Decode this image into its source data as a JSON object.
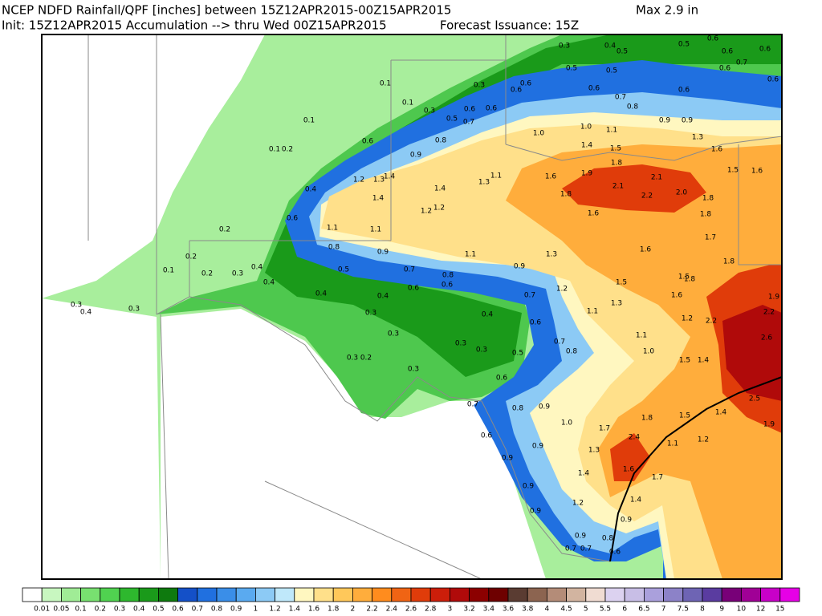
{
  "header": {
    "title": "NCEP NDFD Rainfall/QPF [inches] between 15Z12APR2015-00Z15APR2015",
    "max": "Max   2.9 in",
    "init": "Init: 15Z12APR2015 Accumulation --> thru Wed 00Z15APR2015",
    "issuance": "Forecast Issuance: 15Z"
  },
  "legend": {
    "colors": [
      "#ffffff",
      "#c8f7c0",
      "#a0ec96",
      "#78e070",
      "#50d250",
      "#2eb82e",
      "#1a9a1a",
      "#0e7a0e",
      "#1450c8",
      "#2070e0",
      "#3a8ee8",
      "#5aaaf0",
      "#8ccaf5",
      "#bfe8fa",
      "#fff7c0",
      "#ffe08a",
      "#ffc85a",
      "#ffad3c",
      "#ff8c1e",
      "#f06414",
      "#e03c0a",
      "#cc1e0a",
      "#b00a0a",
      "#8c0000",
      "#6e0000",
      "#5a3c32",
      "#8c6450",
      "#b48c78",
      "#d2b4a0",
      "#f0dcd2",
      "#dcd2f0",
      "#c8bee6",
      "#aaa0dc",
      "#8c82c8",
      "#6e64b4",
      "#5a3ca0",
      "#780078",
      "#a00096",
      "#c800c8",
      "#e600e6"
    ],
    "labels": [
      "0.01",
      "0.05",
      "0.1",
      "0.2",
      "0.3",
      "0.4",
      "0.5",
      "0.6",
      "0.7",
      "0.8",
      "0.9",
      "1",
      "1.2",
      "1.4",
      "1.6",
      "1.8",
      "2",
      "2.2",
      "2.4",
      "2.6",
      "2.8",
      "3",
      "3.2",
      "3.4",
      "3.6",
      "3.8",
      "4",
      "4.5",
      "5",
      "5.5",
      "6",
      "6.5",
      "7",
      "7.5",
      "8",
      "9",
      "10",
      "12",
      "15"
    ]
  },
  "map": {
    "labels": [
      "0.3",
      "0.4",
      "0.5",
      "0.6",
      "0.6",
      "0.5",
      "0.6",
      "0.7",
      "0.5",
      "0.6",
      "0.6",
      "0.1",
      "0.1",
      "0.3",
      "0.3",
      "0.5",
      "0.6",
      "0.6",
      "0.7",
      "0.6",
      "0.6",
      "0.5",
      "0.6",
      "0.7",
      "0.6",
      "0.8",
      "0.9",
      "0.9",
      "0.1",
      "0.1",
      "0.2",
      "0.6",
      "0.8",
      "0.9",
      "1.0",
      "1.1",
      "1.0",
      "1.4",
      "1.5",
      "1.3",
      "1.6",
      "1.8",
      "1.9",
      "2.1",
      "2.1",
      "2.2",
      "2.0",
      "1.8",
      "1.5",
      "1.6",
      "1.1",
      "1.3",
      "1.4",
      "1.2",
      "1.3",
      "1.4",
      "1.4",
      "1.2",
      "1.2",
      "1.6",
      "1.8",
      "1.6",
      "1.8",
      "0.4",
      "0.6",
      "1.1",
      "1.1",
      "0.2",
      "0.2",
      "0.1",
      "0.2",
      "0.3",
      "0.4",
      "0.4",
      "0.8",
      "0.9",
      "1.1",
      "1.3",
      "0.5",
      "0.7",
      "0.8",
      "0.9",
      "0.6",
      "0.6",
      "0.4",
      "0.4",
      "0.3",
      "0.3",
      "0.3",
      "0.2",
      "0.3",
      "0.3",
      "0.4",
      "0.5",
      "0.3",
      "0.6",
      "0.7",
      "0.6",
      "0.7",
      "0.8",
      "1.2",
      "1.1",
      "1.3",
      "1.5",
      "1.6",
      "1.5",
      "1.6",
      "1.8",
      "1.7",
      "1.8",
      "1.9",
      "2.2",
      "2.2",
      "2.6",
      "1.2",
      "1.0",
      "1.1",
      "1.5",
      "1.4",
      "0.3",
      "0.4",
      "0.3",
      "0.7",
      "0.6",
      "0.9",
      "0.9",
      "0.8",
      "0.9",
      "1.0",
      "1.3",
      "1.4",
      "1.7",
      "2.4",
      "1.6",
      "1.7",
      "1.8",
      "1.1",
      "1.2",
      "1.4",
      "1.5",
      "1.9",
      "2.5",
      "1.2",
      "1.4",
      "0.9",
      "0.9",
      "0.9",
      "0.9",
      "0.7",
      "0.7",
      "0.6",
      "0.8"
    ]
  }
}
